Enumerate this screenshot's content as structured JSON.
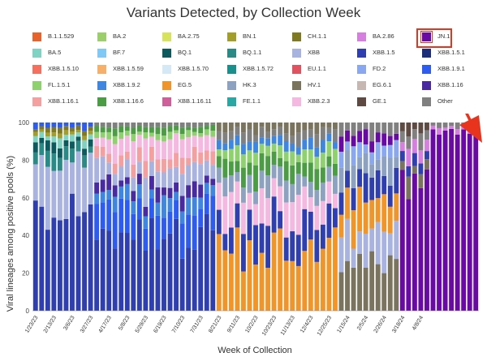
{
  "chart_data": {
    "type": "bar",
    "stacked": true,
    "title": "Variants Detected, by Collection Week",
    "xlabel": "Week of Collection",
    "ylabel": "Viral lineages among positive pools (%)",
    "ylim": [
      0,
      100
    ],
    "yticks": [
      0,
      20,
      40,
      60,
      80,
      100
    ],
    "grid": false,
    "legend_position": "top",
    "annotation": "red arrow pointing from JN.1 legend entry to the right edge of the bars",
    "x_tick_labels": [
      "1/23/23",
      "2/13/23",
      "3/6/23",
      "3/27/23",
      "4/17/23",
      "5/8/23",
      "5/29/23",
      "6/19/23",
      "7/10/23",
      "7/31/23",
      "8/21/23",
      "9/11/23",
      "10/2/23",
      "10/23/23",
      "11/13/23",
      "12/4/23",
      "12/25/23",
      "1/15/24",
      "2/5/24",
      "2/26/24",
      "3/18/24",
      "4/8/24"
    ],
    "legend": [
      {
        "name": "B.1.1.529",
        "color": "#e8622b"
      },
      {
        "name": "BA.2",
        "color": "#9ccf6b"
      },
      {
        "name": "BA.2.75",
        "color": "#d7e35a"
      },
      {
        "name": "BN.1",
        "color": "#a39d2a"
      },
      {
        "name": "CH.1.1",
        "color": "#7f7a22"
      },
      {
        "name": "BA.2.86",
        "color": "#d77fe0"
      },
      {
        "name": "JN.1",
        "color": "#6a0aa5"
      },
      {
        "name": "BA.5",
        "color": "#7fd3c2"
      },
      {
        "name": "BF.7",
        "color": "#80c8f5"
      },
      {
        "name": "BQ.1",
        "color": "#0d5a5e"
      },
      {
        "name": "BQ.1.1",
        "color": "#2a8a86"
      },
      {
        "name": "XBB",
        "color": "#a9b3df"
      },
      {
        "name": "XBB.1.5",
        "color": "#2f3fb0"
      },
      {
        "name": "XBB.1.5.1",
        "color": "#1d2f7a"
      },
      {
        "name": "XBB.1.5.10",
        "color": "#f5705e"
      },
      {
        "name": "XBB.1.5.59",
        "color": "#f6b06c"
      },
      {
        "name": "XBB.1.5.70",
        "color": "#d5e8f5"
      },
      {
        "name": "XBB.1.5.72",
        "color": "#1a8f8c"
      },
      {
        "name": "EU.1.1",
        "color": "#e05260"
      },
      {
        "name": "FD.2",
        "color": "#8aa8ef"
      },
      {
        "name": "XBB.1.9.1",
        "color": "#2f5cf0"
      },
      {
        "name": "FL.1.5.1",
        "color": "#8fd16f"
      },
      {
        "name": "XBB.1.9.2",
        "color": "#3e86e0"
      },
      {
        "name": "EG.5",
        "color": "#f0952a"
      },
      {
        "name": "HK.3",
        "color": "#8da1c0"
      },
      {
        "name": "HV.1",
        "color": "#7a735e"
      },
      {
        "name": "EG.6.1",
        "color": "#c6b7b2"
      },
      {
        "name": "XBB.1.16",
        "color": "#4a2aa0"
      },
      {
        "name": "XBB.1.16.1",
        "color": "#f4a0a0"
      },
      {
        "name": "XBB.1.16.6",
        "color": "#4c9c45"
      },
      {
        "name": "XBB.1.16.11",
        "color": "#cf5f9a"
      },
      {
        "name": "FE.1.1",
        "color": "#2ba7a3"
      },
      {
        "name": "XBB.2.3",
        "color": "#f4b8e1"
      },
      {
        "name": "GE.1",
        "color": "#5e4a42"
      },
      {
        "name": "Other",
        "color": "#808080"
      }
    ],
    "highlighted_legend_entry": "JN.1",
    "phases": [
      {
        "weeks": [
          0,
          10
        ],
        "composition": {
          "XBB.1.5": 55,
          "XBB": 25,
          "BQ.1.1": 6,
          "BQ.1": 4,
          "BA.5": 3,
          "BN.1": 2,
          "CH.1.1": 2,
          "XBB.1.9.1": 3
        }
      },
      {
        "weeks": [
          10,
          30
        ],
        "composition": {
          "XBB.1.5": 40,
          "XBB.1.9.1": 14,
          "XBB.1.9.2": 8,
          "XBB.1.16": 6,
          "XBB": 10,
          "XBB.1.16.1": 6,
          "XBB.2.3": 8,
          "FL.1.5.1": 3,
          "XBB.1.16.6": 3,
          "Other": 2
        }
      },
      {
        "weeks": [
          30,
          50
        ],
        "composition": {
          "EG.5": 35,
          "XBB.1.5": 15,
          "XBB.2.3": 14,
          "HK.3": 8,
          "XBB.1.16.6": 8,
          "FL.1.5.1": 6,
          "XBB.1.9.2": 5,
          "Other": 5,
          "HV.1": 4
        }
      },
      {
        "weeks": [
          50,
          60
        ],
        "composition": {
          "HV.1": 25,
          "XBB": 18,
          "EG.5": 15,
          "XBB.1.5": 12,
          "HK.3": 10,
          "FD.2": 8,
          "JN.1": 6,
          "Other": 6
        }
      },
      {
        "weeks": [
          60,
          65
        ],
        "composition": {
          "JN.1": 70,
          "HV.1": 8,
          "XBB.1.5": 6,
          "BA.2.86": 6,
          "Other": 5,
          "GE.1": 5
        }
      },
      {
        "weeks": [
          65,
          73
        ],
        "composition": {
          "JN.1": 96,
          "BA.2.86": 2,
          "Other": 2
        }
      }
    ],
    "num_weeks": 73
  }
}
